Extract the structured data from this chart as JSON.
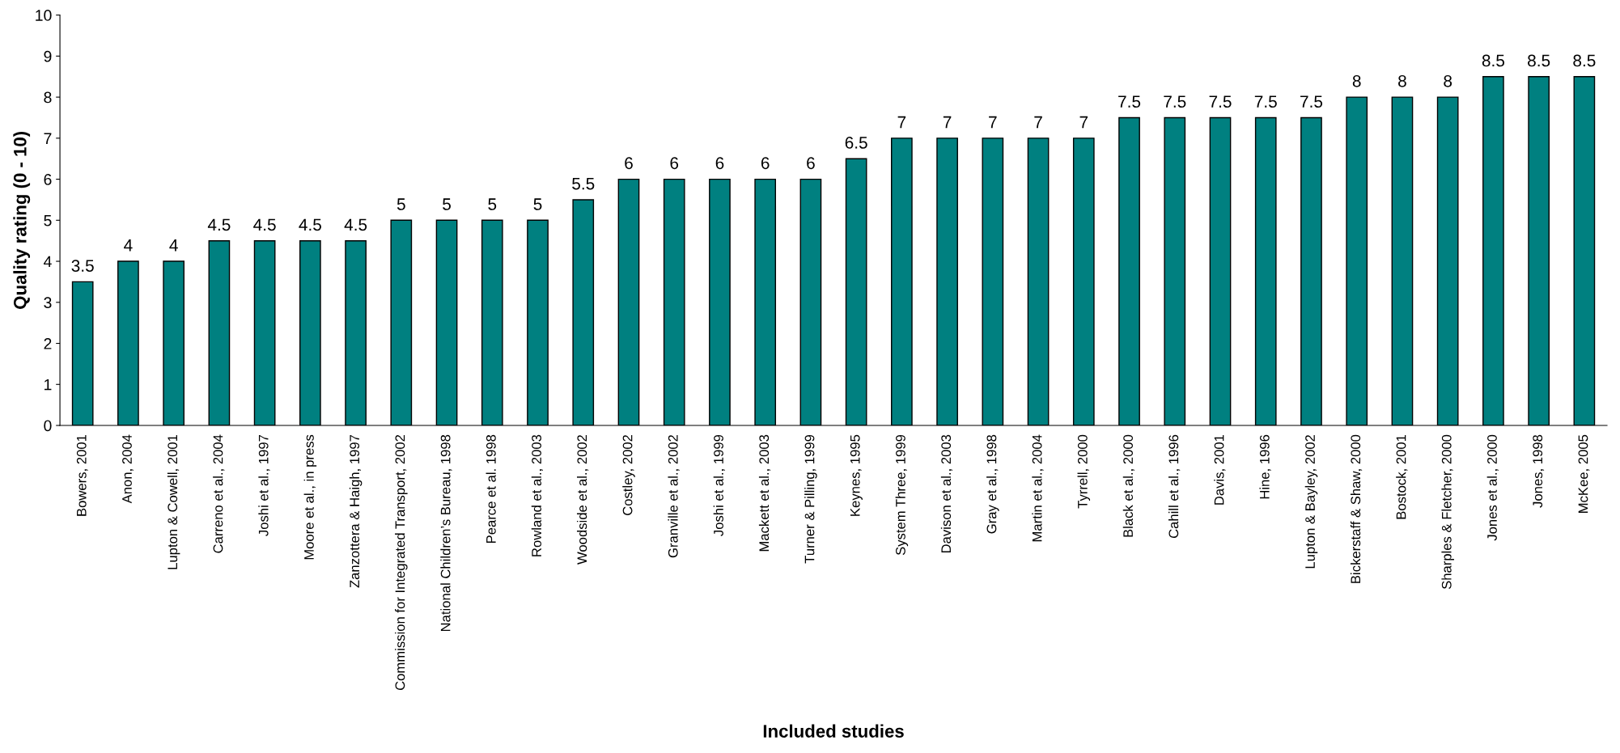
{
  "chart_data": {
    "type": "bar",
    "xlabel": "Included studies",
    "ylabel": "Quality rating (0 - 10)",
    "categories": [
      "Bowers, 2001",
      "Anon, 2004",
      "Lupton & Cowell, 2001",
      "Carreno et al., 2004",
      "Joshi et al., 1997",
      "Moore et al., in press",
      "Zanzottera & Haigh, 1997",
      "Commission for Integrated Transport, 2002",
      "National Children’s Bureau, 1998",
      "Pearce et al. 1998",
      "Rowland et al., 2003",
      "Woodside et al., 2002",
      "Costley, 2002",
      "Granville et al., 2002",
      "Joshi et al., 1999",
      "Mackett et al., 2003",
      "Turner & Pilling, 1999",
      "Keynes, 1995",
      "System Three, 1999",
      "Davison et al., 2003",
      "Gray et al., 1998",
      "Martin et al., 2004",
      "Tyrrell, 2000",
      "Black et al., 2000",
      "Cahill et al., 1996",
      "Davis, 2001",
      "Hine, 1996",
      "Lupton & Bayley, 2002",
      "Bickerstaff & Shaw, 2000",
      "Bostock, 2001",
      "Sharples & Fletcher, 2000",
      "Jones et al., 2000",
      "Jones, 1998",
      "McKee, 2005"
    ],
    "values": [
      3.5,
      4,
      4,
      4.5,
      4.5,
      4.5,
      4.5,
      5,
      5,
      5,
      5,
      5.5,
      6,
      6,
      6,
      6,
      6,
      6.5,
      7,
      7,
      7,
      7,
      7,
      7.5,
      7.5,
      7.5,
      7.5,
      7.5,
      8,
      8,
      8,
      8.5,
      8.5,
      8.5
    ],
    "color": "#008080",
    "ylim": [
      0,
      10
    ],
    "yticks": [
      0,
      1,
      2,
      3,
      4,
      5,
      6,
      7,
      8,
      9,
      10
    ],
    "grid": false,
    "data_labels": true
  }
}
